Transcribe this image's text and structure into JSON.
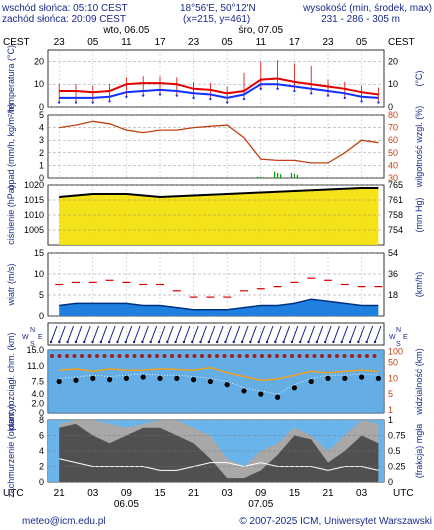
{
  "header": {
    "sunrise": "wschód słońca: 05:10 CEST",
    "sunset": "zachód słońca: 20:09 CEST",
    "coords": "18°56'E, 50°12'N",
    "grid": "(x=215, y=461)",
    "altitude_title": "wysokość (min, środek, max)",
    "altitude_values": "231 - 286 - 305 m"
  },
  "timeline": {
    "tz_top": "CEST",
    "tz_bottom": "UTC",
    "top_hours": [
      "23",
      "05",
      "11",
      "17",
      "23",
      "05",
      "11",
      "17",
      "23",
      "05"
    ],
    "bottom_hours": [
      "21",
      "03",
      "09",
      "15",
      "21",
      "03",
      "09",
      "15",
      "21",
      "03"
    ],
    "day_labels": [
      {
        "label": "wto, 06.05",
        "hour": 12
      },
      {
        "label": "śro, 07.05",
        "hour": 36
      }
    ],
    "bottom_dates": [
      {
        "label": "06.05",
        "hour": 12
      },
      {
        "label": "07.05",
        "hour": 36
      }
    ]
  },
  "footer": {
    "email": "meteo@icm.edu.pl",
    "copyright": "© 2007-2025 ICM, Uniwersytet Warszawski"
  },
  "colors": {
    "label": "#1a2a8a",
    "night": "#d4d4d4",
    "temp_red": "#e00000",
    "temp_blue": "#1030ff",
    "humidity": "#c04010",
    "precip": "#00a000",
    "pressure_fill": "#f4e000",
    "pressure_line": "#000000",
    "wind_fill": "#2080e0",
    "gust": "#e00000",
    "visibility_fill": "#4aa0e0",
    "cloud_dark": "#505050",
    "cloud_light": "#a8a8a8"
  },
  "chart_data": [
    {
      "type": "line",
      "ylabel": "temperatura (°C)",
      "ylabel_right": "(°C)",
      "ylim": [
        0,
        25
      ],
      "yticks": [
        0,
        10,
        20
      ],
      "x_hours": [
        0,
        3,
        6,
        9,
        12,
        15,
        18,
        21,
        24,
        27,
        30,
        33,
        36,
        39,
        42,
        45,
        48,
        51,
        54,
        57
      ],
      "series": [
        {
          "name": "",
          "values": [
            7,
            7,
            6.5,
            7,
            10,
            10.5,
            10.5,
            10,
            8,
            7.5,
            6,
            7,
            12,
            12.5,
            11,
            10,
            9,
            8,
            6.5,
            5.5
          ]
        },
        {
          "name": "",
          "values": [
            4,
            4,
            4,
            4.5,
            6.5,
            7,
            7.5,
            7,
            6,
            5.5,
            4,
            5.5,
            10,
            10,
            9,
            8,
            7,
            6,
            4.5,
            4
          ]
        }
      ]
    },
    {
      "type": "line",
      "ylabel": "opad (mm/h, kg/m²/h)",
      "ylabel_right": "wilgotność wzgl. (%)",
      "ylim": [
        0,
        5
      ],
      "yticks": [
        0,
        1,
        2,
        3,
        4,
        5
      ],
      "ylim_right": [
        30,
        80
      ],
      "yticks_right": [
        30,
        40,
        50,
        60,
        70,
        80
      ],
      "x_hours": [
        0,
        3,
        6,
        9,
        12,
        15,
        18,
        21,
        24,
        27,
        30,
        33,
        36,
        39,
        42,
        45,
        48,
        51,
        54,
        57
      ],
      "humidity": [
        70,
        72,
        75,
        73,
        68,
        66,
        68,
        68,
        70,
        71,
        72,
        62,
        45,
        44,
        44,
        42,
        42,
        50,
        60,
        58
      ],
      "precip": [
        0,
        0,
        0,
        0,
        0,
        0,
        0,
        0,
        0,
        0,
        0,
        0,
        0.1,
        0.5,
        0.4,
        0,
        0,
        0,
        0,
        0
      ]
    },
    {
      "type": "area",
      "ylabel": "ciśnienie (hPa)",
      "ylabel_right": "(mm Hg)",
      "ylim": [
        1000,
        1020
      ],
      "yticks": [
        1005,
        1010,
        1015,
        1020
      ],
      "yticks_right": [
        "754",
        "758",
        "761",
        "765"
      ],
      "x_hours": [
        0,
        6,
        12,
        18,
        24,
        30,
        36,
        42,
        48,
        54,
        57
      ],
      "values": [
        1016,
        1017,
        1017,
        1016,
        1016.5,
        1017,
        1017.5,
        1018,
        1018.5,
        1019,
        1019
      ]
    },
    {
      "type": "area",
      "ylabel": "wiatr (m/s)",
      "ylabel_right": "(km/h)",
      "ylim": [
        0,
        15
      ],
      "yticks": [
        0,
        5,
        10,
        15
      ],
      "yticks_right": [
        "18",
        "36",
        "54"
      ],
      "x_hours": [
        0,
        3,
        6,
        9,
        12,
        15,
        18,
        21,
        24,
        27,
        30,
        33,
        36,
        39,
        42,
        45,
        48,
        51,
        54,
        57
      ],
      "wind": [
        2.5,
        3,
        3,
        3,
        3,
        2.5,
        2.5,
        2,
        1.5,
        1.5,
        1.5,
        2,
        2.5,
        2.5,
        3,
        4,
        3.5,
        3,
        2.5,
        2.5
      ],
      "gust": [
        7.5,
        8,
        8,
        8.5,
        8,
        7.5,
        7.5,
        6,
        4.5,
        4.5,
        4.5,
        6,
        6.5,
        7,
        8,
        9,
        8.5,
        7.5,
        7,
        7
      ]
    },
    {
      "type": "scatter",
      "ylabel": "W S N E",
      "n_arrows": 40
    },
    {
      "type": "line",
      "ylabel": "pion. rozciągł. chm. (km)",
      "ylabel_right": "widzialność (km)",
      "ylim": [
        0,
        15
      ],
      "yticks": [
        0,
        2.0,
        4.0,
        7.5,
        11.0,
        15.0
      ],
      "ytick_labels": [
        "0",
        "2.0",
        "4.0",
        "7.5",
        "11.0",
        "15.0"
      ],
      "yticks_right": [
        "1",
        "5",
        "10",
        "50",
        "100"
      ],
      "x_hours": [
        0,
        3,
        6,
        9,
        12,
        15,
        18,
        21,
        24,
        27,
        30,
        33,
        36,
        39,
        42,
        45,
        48,
        51,
        54,
        57
      ],
      "visibility_frac": [
        0.55,
        0.57,
        0.6,
        0.58,
        0.6,
        0.62,
        0.6,
        0.6,
        0.58,
        0.55,
        0.5,
        0.4,
        0.35,
        0.3,
        0.45,
        0.55,
        0.6,
        0.6,
        0.62,
        0.6
      ],
      "orange": [
        0.68,
        0.7,
        0.66,
        0.7,
        0.68,
        0.68,
        0.7,
        0.69,
        0.68,
        0.72,
        0.64,
        0.58,
        0.52,
        0.54,
        0.6,
        0.66,
        0.64,
        0.66,
        0.68,
        0.66
      ]
    },
    {
      "type": "area",
      "ylabel": "zachmurzenie (oktanty)",
      "ylabel_right": "(frakcja) mgła",
      "ylim": [
        0,
        8
      ],
      "yticks": [
        0,
        2,
        4,
        6,
        8
      ],
      "yticks_right": [
        "0",
        "0.25",
        "0.5",
        "0.75",
        "1"
      ],
      "x_hours": [
        0,
        3,
        6,
        9,
        12,
        15,
        18,
        21,
        24,
        27,
        30,
        33,
        36,
        39,
        42,
        45,
        48,
        51,
        54,
        57
      ],
      "total": [
        7.5,
        8,
        8,
        7.5,
        7,
        7.5,
        8,
        8,
        7,
        6,
        3,
        2,
        4,
        5,
        7,
        6,
        4,
        6,
        8,
        7.5
      ],
      "low": [
        7,
        7.5,
        6,
        5,
        6,
        7,
        7,
        6,
        5,
        3,
        0.5,
        0.5,
        1.5,
        3.5,
        6,
        5.5,
        2.5,
        4,
        6,
        5
      ],
      "fog_line": [
        3,
        2.5,
        2,
        2,
        2,
        2,
        1.5,
        1.5,
        2,
        2.5,
        2.5,
        2,
        2.5,
        2,
        2,
        2,
        1.5,
        2,
        2,
        1.5
      ]
    }
  ]
}
